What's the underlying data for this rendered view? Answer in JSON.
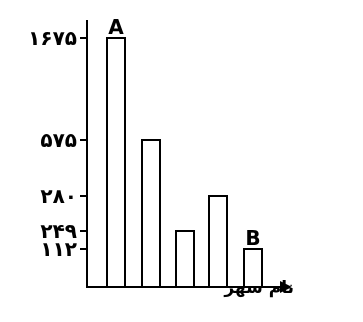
{
  "chart_data": {
    "type": "bar",
    "title": "",
    "xlabel": "نام شهر",
    "ylabel": "",
    "categories": [
      "",
      "",
      "",
      "",
      ""
    ],
    "values": [
      1675,
      575,
      280,
      249,
      112
    ],
    "values_display_order": [
      1675,
      575,
      249,
      280,
      112
    ],
    "bar_annotations": [
      "A",
      "",
      "",
      "",
      "B"
    ],
    "y_ticks": [
      {
        "value": 1675,
        "label": "۱۶۷۵"
      },
      {
        "value": 575,
        "label": "۵۷۵"
      },
      {
        "value": 280,
        "label": "۲۸۰"
      },
      {
        "value": 249,
        "label": "۲۴۹"
      },
      {
        "value": 112,
        "label": "۱۱۲"
      }
    ],
    "y_scale": "non-linear",
    "grid": false,
    "legend": "none",
    "colors": {
      "bar_fill": "#ffffff",
      "bar_stroke": "#000000",
      "axis": "#000000"
    }
  }
}
